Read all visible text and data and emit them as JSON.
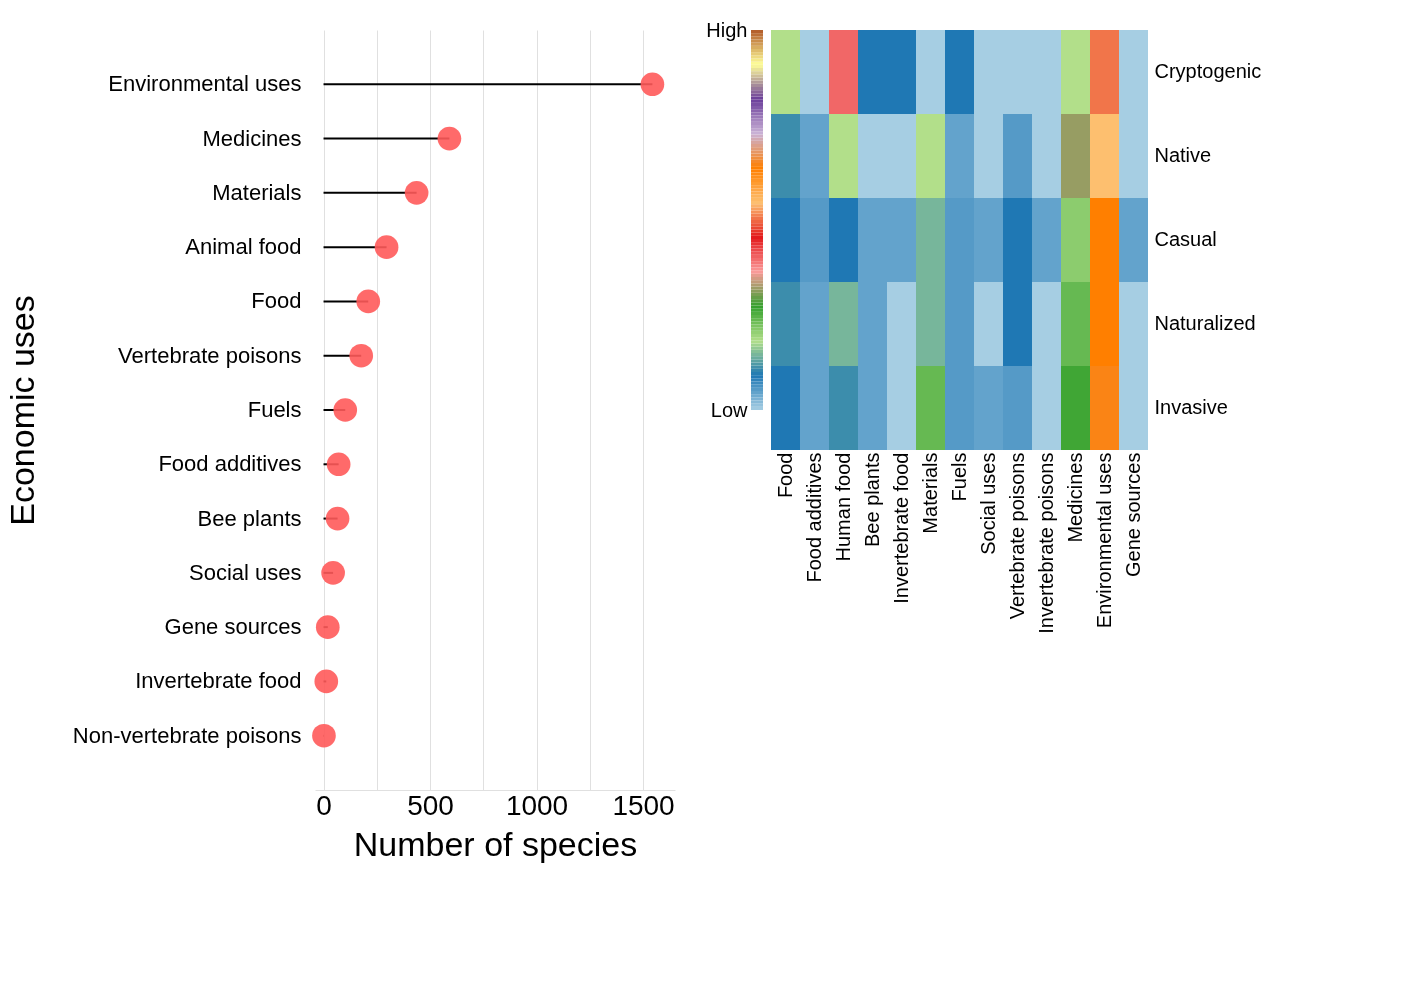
{
  "chart_data": [
    {
      "type": "lollipop",
      "xlabel": "Number of species",
      "ylabel": "Economic uses",
      "categories": [
        "Environmental uses",
        "Medicines",
        "Materials",
        "Animal food",
        "Food",
        "Vertebrate poisons",
        "Fuels",
        "Food additives",
        "Bee plants",
        "Social uses",
        "Gene sources",
        "Invertebrate food",
        "Non-vertebrate poisons"
      ],
      "values": [
        1544,
        591,
        437,
        296,
        210,
        177,
        102,
        71,
        66,
        45,
        20,
        13,
        2
      ],
      "color": "#ff5a5a",
      "xlim": [
        -40,
        1650
      ],
      "xticks": [
        0,
        {
          "value": 250,
          "label": null
        },
        500,
        {
          "value": 750,
          "label": null
        },
        1000,
        {
          "value": 1250,
          "label": null
        },
        1500
      ],
      "grid": "x",
      "marker": "circle",
      "orientation": "horizontal"
    },
    {
      "type": "heatmap",
      "categories": [
        "Food",
        "Food additives",
        "Human food",
        "Bee plants",
        "Invertebrate food",
        "Materials",
        "Fuels",
        "Social uses",
        "Vertebrate poisons",
        "Invertebrate poisons",
        "Medicines",
        "Environmental uses",
        "Gene sources"
      ],
      "y_categories": [
        "Cryptogenic",
        "Native",
        "Casual",
        "Naturalized",
        "Invasive"
      ],
      "cells": [
        [
          3,
          1,
          5.4,
          2,
          2,
          1,
          2,
          1,
          1,
          1,
          3,
          6.55,
          1
        ],
        [
          2.2,
          1.5,
          3,
          1,
          1,
          3,
          1.5,
          1,
          1.6,
          1,
          4.5,
          7,
          1
        ],
        [
          2,
          1.6,
          2,
          1.5,
          1.5,
          2.6,
          1.6,
          1.5,
          2,
          1.5,
          3.3,
          8,
          1.5
        ],
        [
          2.2,
          1.5,
          2.6,
          1.5,
          1,
          2.6,
          1.6,
          1,
          2,
          1,
          3.6,
          8,
          1
        ],
        [
          2,
          1.5,
          2.2,
          1.5,
          1,
          3.6,
          1.6,
          1.5,
          1.6,
          1,
          3.9,
          8.1,
          1
        ]
      ],
      "colors": [
        "#a6cee3",
        "#1f78b4",
        "#b2df8a",
        "#33a02c",
        "#fb9a99",
        "#e31a1c",
        "#fdbf6f",
        "#ff7f00",
        "#cab2d6",
        "#6a3d9a",
        "#ffff99",
        "#b15928"
      ],
      "clim": [
        1,
        12
      ],
      "cticks": [
        {
          "value": 1,
          "label": "Low"
        },
        {
          "value": 12,
          "label": "High"
        }
      ]
    }
  ]
}
